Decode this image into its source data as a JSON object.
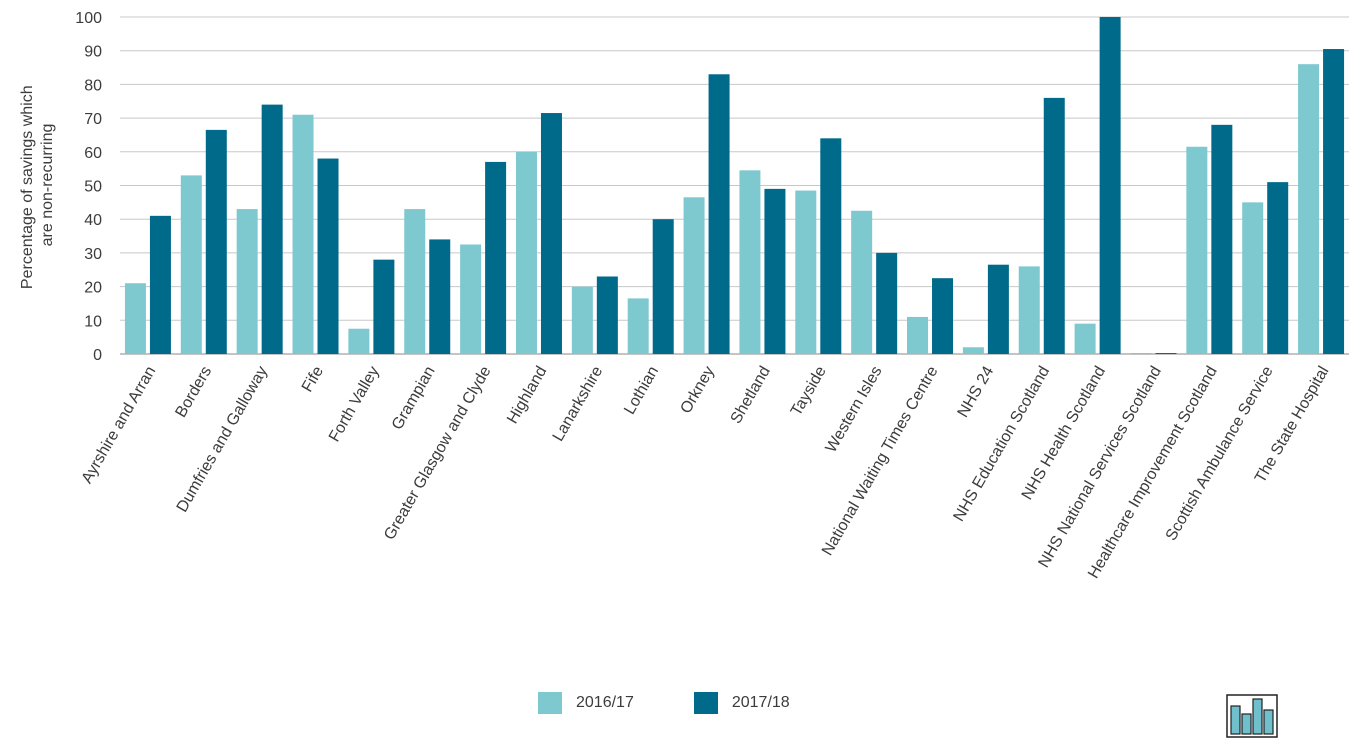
{
  "chart_data": {
    "type": "bar",
    "title": "",
    "xlabel": "",
    "ylabel_lines": [
      "Percentage of savings which",
      "are non-recurring"
    ],
    "ylim": [
      0,
      100
    ],
    "yticks": [
      0,
      10,
      20,
      30,
      40,
      50,
      60,
      70,
      80,
      90,
      100
    ],
    "grid": true,
    "legend_position": "bottom",
    "categories": [
      "Ayrshire and Arran",
      "Borders",
      "Dumfries and Galloway",
      "Fife",
      "Forth Valley",
      "Grampian",
      "Greater Glasgow and Clyde",
      "Highland",
      "Lanarkshire",
      "Lothian",
      "Orkney",
      "Shetland",
      "Tayside",
      "Western Isles",
      "National Waiting Times Centre",
      "NHS 24",
      "NHS Education Scotland",
      "NHS Health Scotland",
      "NHS National Services Scotland",
      "Healthcare Improvement Scotland",
      "Scottish Ambulance Service",
      "The State Hospital"
    ],
    "series": [
      {
        "name": "2016/17",
        "color": "#7ec8d0",
        "values": [
          21,
          53,
          43,
          71,
          7.5,
          43,
          32.5,
          60,
          20,
          16.5,
          46.5,
          54.5,
          48.5,
          42.5,
          11,
          2,
          26,
          9,
          0,
          61.5,
          45,
          86
        ]
      },
      {
        "name": "2017/18",
        "color": "#006a8a",
        "values": [
          41,
          66.5,
          74,
          58,
          28,
          34,
          57,
          71.5,
          23,
          40,
          83,
          49,
          64,
          30,
          22.5,
          26.5,
          76,
          100,
          0,
          68,
          51,
          90.5
        ]
      }
    ]
  },
  "icon": "bar-chart-icon",
  "colors": {
    "grid": "#c8c8c8",
    "axis": "#3c3c3c"
  }
}
